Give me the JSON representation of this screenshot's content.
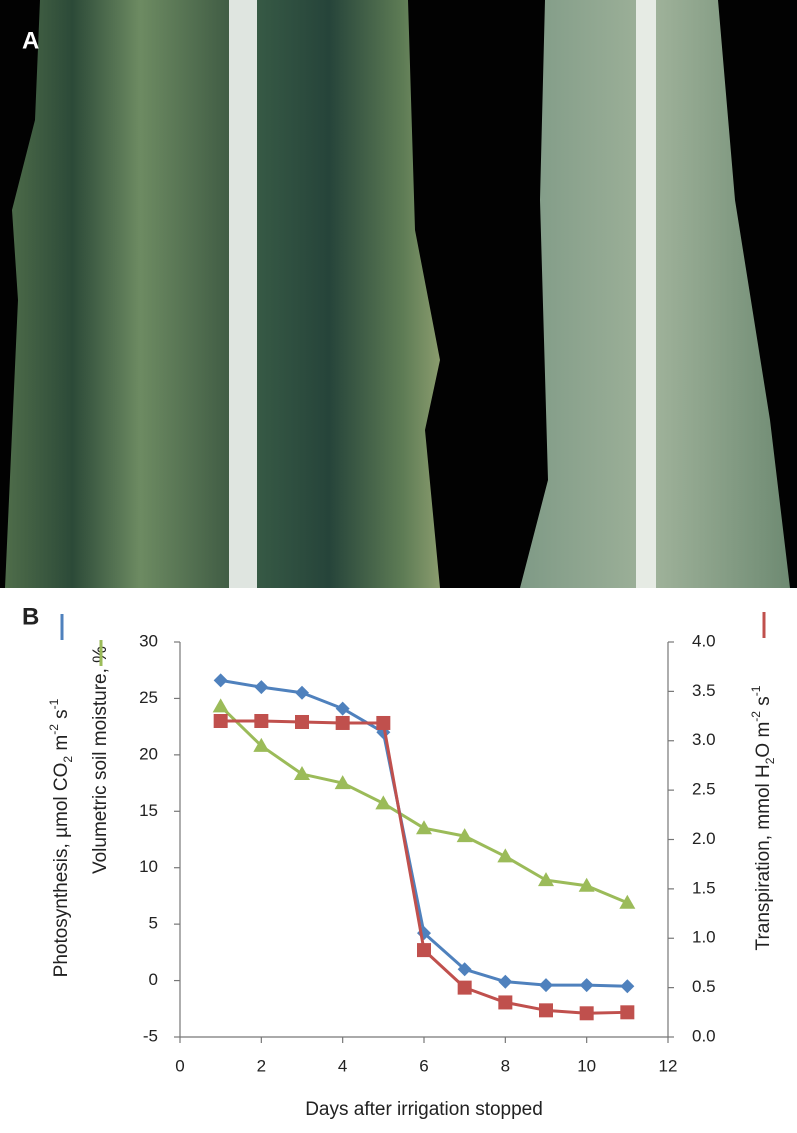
{
  "panel_labels": [
    "A",
    "B"
  ],
  "chart_data": {
    "type": "line",
    "x": [
      1,
      2,
      3,
      4,
      5,
      6,
      7,
      8,
      9,
      10,
      11
    ],
    "xlabel": "Days after irrigation stopped",
    "xlim": [
      0,
      12
    ],
    "xticks": [
      0,
      2,
      4,
      6,
      8,
      10,
      12
    ],
    "ylim": [
      -5,
      30
    ],
    "yticks": [
      -5,
      0,
      5,
      10,
      15,
      20,
      25,
      30
    ],
    "y2lim": [
      0,
      4
    ],
    "y2ticks": [
      {
        "value": 0,
        "label": "0.0"
      },
      {
        "value": 0.5,
        "label": "0.5"
      },
      {
        "value": 1,
        "label": "1.0"
      },
      {
        "value": 1.5,
        "label": "1.5"
      },
      {
        "value": 2,
        "label": "2.0"
      },
      {
        "value": 2.5,
        "label": "2.5"
      },
      {
        "value": 3,
        "label": "3.0"
      },
      {
        "value": 3.5,
        "label": "3.5"
      },
      {
        "value": 4,
        "label": "4.0"
      }
    ],
    "ylabel": [
      "Photosynthesis, µmol CO",
      "2",
      " m",
      "-2",
      " s",
      "-1"
    ],
    "ylabel_moisture": "Volumetric soil moisture, %",
    "y2label": [
      "Transpiration, mmol H",
      "2",
      "O m",
      "-2",
      " s",
      "-1"
    ],
    "series": [
      {
        "color": "#4f81bd",
        "marker": "diamond",
        "values": [
          26.6,
          26.0,
          25.5,
          24.1,
          22.0,
          4.2,
          1.0,
          -0.1,
          -0.4,
          -0.4,
          -0.5
        ]
      },
      {
        "color": "#9bbb59",
        "marker": "triangle",
        "values": [
          24.3,
          20.8,
          18.3,
          17.5,
          15.7,
          13.5,
          12.8,
          11.0,
          8.9,
          8.4,
          6.9
        ]
      },
      {
        "color": "#c0504d",
        "marker": "square",
        "axis": "y2",
        "values": [
          3.2,
          3.2,
          3.19,
          3.18,
          3.18,
          0.88,
          0.5,
          0.35,
          0.27,
          0.24,
          0.25
        ]
      }
    ]
  }
}
